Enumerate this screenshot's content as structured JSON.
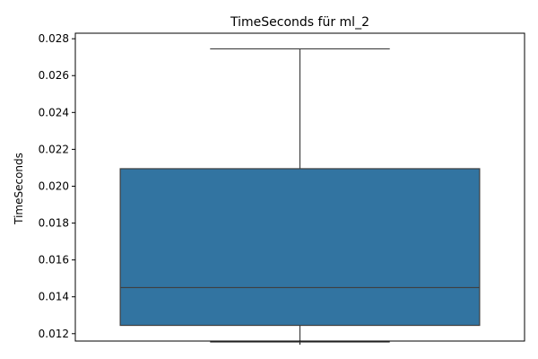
{
  "chart_data": {
    "type": "box",
    "title": "TimeSeconds für ml_2",
    "xlabel": "",
    "ylabel": "TimeSeconds",
    "ylim": [
      0.0116,
      0.0283
    ],
    "yticks": [
      "0.012",
      "0.014",
      "0.016",
      "0.018",
      "0.020",
      "0.022",
      "0.024",
      "0.026",
      "0.028"
    ],
    "yticks_values": [
      0.012,
      0.014,
      0.016,
      0.018,
      0.02,
      0.022,
      0.024,
      0.026,
      0.028
    ],
    "box": {
      "whisker_low": 0.01155,
      "q1": 0.01245,
      "median": 0.0145,
      "q3": 0.02095,
      "whisker_high": 0.02745
    },
    "colors": {
      "box_fill": "#3274a1",
      "line": "#3f3f3f",
      "axes": "#000000"
    }
  }
}
